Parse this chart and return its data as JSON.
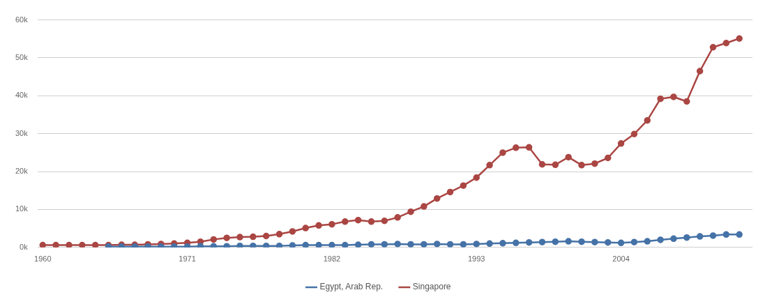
{
  "chart_data": {
    "type": "line",
    "x": [
      1960,
      1961,
      1962,
      1963,
      1964,
      1965,
      1966,
      1967,
      1968,
      1969,
      1970,
      1971,
      1972,
      1973,
      1974,
      1975,
      1976,
      1977,
      1978,
      1979,
      1980,
      1981,
      1982,
      1983,
      1984,
      1985,
      1986,
      1987,
      1988,
      1989,
      1990,
      1991,
      1992,
      1993,
      1994,
      1995,
      1996,
      1997,
      1998,
      1999,
      2000,
      2001,
      2002,
      2003,
      2004,
      2005,
      2006,
      2007,
      2008,
      2009,
      2010,
      2011,
      2012,
      2013
    ],
    "series": [
      {
        "name": "Egypt, Arab Rep.",
        "color": "#4572a7",
        "values": [
          null,
          null,
          null,
          null,
          null,
          200,
          200,
          200,
          200,
          200,
          200,
          200,
          300,
          300,
          300,
          400,
          400,
          400,
          400,
          500,
          600,
          600,
          600,
          600,
          700,
          800,
          800,
          900,
          800,
          800,
          900,
          800,
          800,
          900,
          1000,
          1100,
          1200,
          1300,
          1400,
          1500,
          1600,
          1500,
          1400,
          1300,
          1200,
          1400,
          1600,
          2000,
          2300,
          2600,
          2900,
          3100,
          3400,
          3400
        ]
      },
      {
        "name": "Singapore",
        "color": "#aa4643",
        "values": [
          600,
          600,
          600,
          600,
          600,
          600,
          700,
          700,
          800,
          900,
          1000,
          1200,
          1500,
          2100,
          2500,
          2700,
          2800,
          3000,
          3500,
          4200,
          5100,
          5800,
          6100,
          6800,
          7200,
          6800,
          7000,
          7900,
          9400,
          10800,
          12900,
          14600,
          16300,
          18400,
          21700,
          25000,
          26300,
          26400,
          21900,
          21800,
          23800,
          21700,
          22100,
          23600,
          27400,
          29900,
          33500,
          39200,
          39700,
          38500,
          46500,
          52800,
          53900,
          55100
        ]
      }
    ],
    "xlim": [
      1959.6,
      2014
    ],
    "xticks": [
      1960,
      1971,
      1982,
      1993,
      2004
    ],
    "ylim": [
      0,
      60000
    ],
    "yticks": [
      {
        "value": 0,
        "label": "0k"
      },
      {
        "value": 10000,
        "label": "10k"
      },
      {
        "value": 20000,
        "label": "20k"
      },
      {
        "value": 30000,
        "label": "30k"
      },
      {
        "value": 40000,
        "label": "40k"
      },
      {
        "value": 50000,
        "label": "50k"
      },
      {
        "value": 60000,
        "label": "60k"
      }
    ],
    "grid": "y",
    "legend": "bottom",
    "marker": "circle",
    "line_style": "solid"
  }
}
